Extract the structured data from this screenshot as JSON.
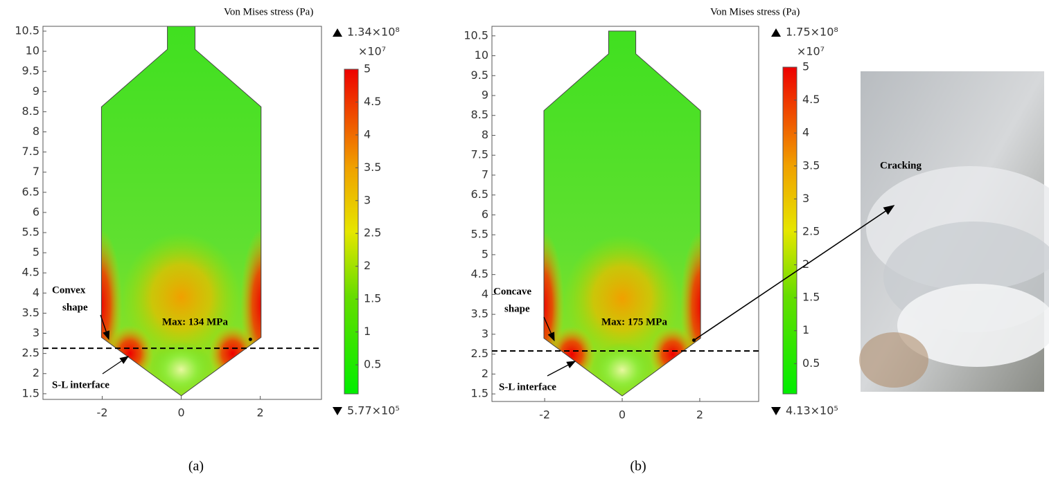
{
  "chart_data": [
    {
      "type": "contour",
      "caption": "(a)",
      "xlim": [
        -3.5,
        3.55
      ],
      "ylim": [
        1.36,
        10.62
      ],
      "xticks": [
        -2,
        0,
        2
      ],
      "yticks": [
        1.5,
        2,
        2.5,
        3,
        3.5,
        4,
        4.5,
        5,
        5.5,
        6,
        6.5,
        7,
        7.5,
        8,
        8.5,
        9,
        9.5,
        10,
        10.5
      ],
      "interface_y": 2.63,
      "max_point": [
        1.75,
        2.85
      ],
      "shape_label": [
        "Convex",
        "shape"
      ],
      "interface_label": "S-L interface",
      "max_label": "Max: 134 MPa",
      "colorbar": {
        "title": "Von Mises stress (Pa)",
        "multiplier": "×10⁷",
        "clim": [
          0.0577,
          5
        ],
        "ticks": [
          0.5,
          1,
          1.5,
          2,
          2.5,
          3,
          3.5,
          4,
          4.5,
          5
        ],
        "max": {
          "value": 134000000,
          "label": "1.34×10⁸"
        },
        "min": {
          "value": 577000,
          "label": "5.77×10⁵"
        }
      }
    },
    {
      "type": "contour",
      "caption": "(b)",
      "xlim": [
        -3.36,
        3.52
      ],
      "ylim": [
        1.31,
        10.74
      ],
      "xticks": [
        -2,
        0,
        2
      ],
      "yticks": [
        1.5,
        2,
        2.5,
        3,
        3.5,
        4,
        4.5,
        5,
        5.5,
        6,
        6.5,
        7,
        7.5,
        8,
        8.5,
        9,
        9.5,
        10,
        10.5
      ],
      "interface_y": 2.58,
      "max_point": [
        1.85,
        2.85
      ],
      "shape_label": [
        "Concave",
        "shape"
      ],
      "interface_label": "S-L interface",
      "max_label": "Max: 175 MPa",
      "photo_label": "Cracking",
      "colorbar": {
        "title": "Von Mises stress (Pa)",
        "multiplier": "×10⁷",
        "clim": [
          0.0413,
          5
        ],
        "ticks": [
          0.5,
          1,
          1.5,
          2,
          2.5,
          3,
          3.5,
          4,
          4.5,
          5
        ],
        "max": {
          "value": 175000000,
          "label": "1.75×10⁸"
        },
        "min": {
          "value": 413000,
          "label": "4.13×10⁵"
        }
      }
    }
  ]
}
